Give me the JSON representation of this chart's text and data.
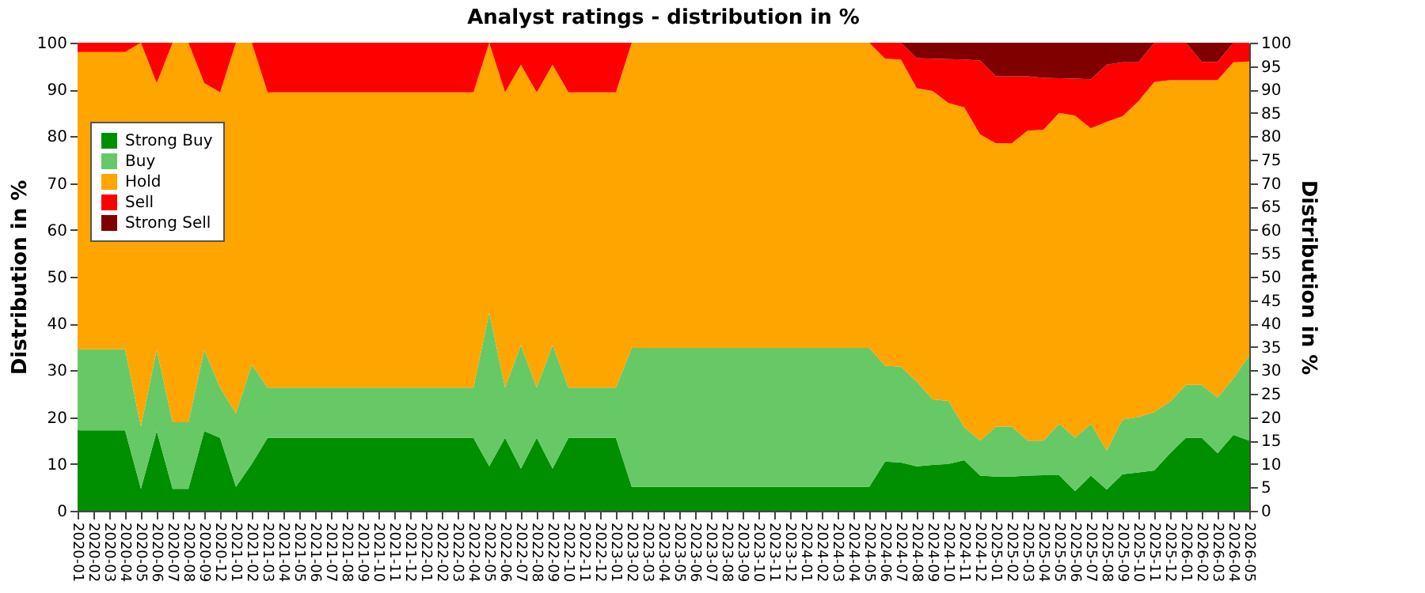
{
  "chart_data": {
    "type": "area",
    "stacked": true,
    "title": "Analyst ratings - distribution in %",
    "ylabel": "Distribution in %",
    "y2label": "Distribution in %",
    "categories": [
      "2020-01",
      "2020-02",
      "2020-03",
      "2020-04",
      "2020-05",
      "2020-06",
      "2020-07",
      "2020-08",
      "2020-09",
      "2020-12",
      "2021-01",
      "2021-02",
      "2021-03",
      "2021-04",
      "2021-05",
      "2021-06",
      "2021-07",
      "2021-08",
      "2021-09",
      "2021-10",
      "2021-11",
      "2021-12",
      "2022-01",
      "2022-02",
      "2022-03",
      "2022-04",
      "2022-05",
      "2022-06",
      "2022-07",
      "2022-08",
      "2022-09",
      "2022-10",
      "2022-11",
      "2022-12",
      "2023-01",
      "2023-02",
      "2023-03",
      "2023-04",
      "2023-05",
      "2023-06",
      "2023-07",
      "2023-08",
      "2023-09",
      "2023-10",
      "2023-11",
      "2023-12",
      "2024-01",
      "2024-02",
      "2024-03",
      "2024-04",
      "2024-05",
      "2024-06",
      "2024-07",
      "2024-08",
      "2024-09",
      "2024-10",
      "2024-11",
      "2024-12",
      "2025-01",
      "2025-02",
      "2025-03",
      "2025-04",
      "2025-05",
      "2025-06",
      "2025-07",
      "2025-08",
      "2025-09",
      "2025-10",
      "2025-11",
      "2025-12",
      "2026-01",
      "2026-02",
      "2026-03",
      "2026-04",
      "2026-05"
    ],
    "series": [
      {
        "name": "Strong Buy",
        "color": "#008f00",
        "values": [
          17.2,
          17.2,
          17.2,
          17.2,
          4.7,
          17,
          4.7,
          4.7,
          17,
          15.6,
          5.1,
          10,
          15.6,
          15.6,
          15.6,
          15.6,
          15.6,
          15.6,
          15.6,
          15.6,
          15.6,
          15.6,
          15.6,
          15.6,
          15.6,
          15.6,
          9.5,
          15.6,
          9,
          15.6,
          9,
          15.6,
          15.6,
          15.6,
          15.6,
          5.1,
          5.1,
          5.1,
          5.1,
          5.1,
          5.1,
          5.1,
          5.1,
          5.1,
          5.1,
          5.1,
          5.1,
          5.1,
          5.1,
          5.1,
          5.1,
          10.5,
          10.3,
          9.5,
          9.8,
          10,
          10.8,
          7.5,
          7.3,
          7.3,
          7.5,
          7.6,
          7.6,
          4.2,
          7.5,
          4.5,
          7.8,
          8.2,
          8.6,
          12.3,
          15.6,
          15.6,
          12.3,
          16.2,
          15
        ]
      },
      {
        "name": "Buy",
        "color": "#66c966",
        "values": [
          17.3,
          17.3,
          17.3,
          17.3,
          13.3,
          17.4,
          14.2,
          14.2,
          17.4,
          10.7,
          15.7,
          21.2,
          10.7,
          10.7,
          10.7,
          10.7,
          10.7,
          10.7,
          10.7,
          10.7,
          10.7,
          10.7,
          10.7,
          10.7,
          10.7,
          10.7,
          32.8,
          10.7,
          26.4,
          10.7,
          26.4,
          10.7,
          10.7,
          10.7,
          10.7,
          29.7,
          29.7,
          29.7,
          29.7,
          29.7,
          29.7,
          29.7,
          29.7,
          29.7,
          29.7,
          29.7,
          29.7,
          29.7,
          29.7,
          29.7,
          29.7,
          20.5,
          20.5,
          18.1,
          14,
          13.5,
          7,
          7.5,
          10.7,
          10.7,
          7.5,
          7.4,
          11,
          11.4,
          11.1,
          8.4,
          11.7,
          11.8,
          12.5,
          11,
          11.3,
          11.3,
          11.9,
          12.1,
          18.2
        ]
      },
      {
        "name": "Hold",
        "color": "#ffa500",
        "values": [
          63.5,
          63.5,
          63.5,
          63.5,
          82,
          57,
          81.1,
          81.1,
          57,
          63.1,
          79.2,
          68.8,
          63.1,
          63.1,
          63.1,
          63.1,
          63.1,
          63.1,
          63.1,
          63.1,
          63.1,
          63.1,
          63.1,
          63.1,
          63.1,
          63.1,
          57.7,
          63.1,
          59.9,
          63.1,
          59.9,
          63.1,
          63.1,
          63.1,
          63.1,
          65.2,
          65.2,
          65.2,
          65.2,
          65.2,
          65.2,
          65.2,
          65.2,
          65.2,
          65.2,
          65.2,
          65.2,
          65.2,
          65.2,
          65.2,
          65.2,
          65.6,
          65.6,
          62.7,
          65.9,
          63.6,
          68.4,
          65.4,
          60.5,
          60.5,
          66.2,
          66.4,
          66.4,
          68.8,
          63.1,
          70.2,
          64.8,
          67.5,
          70.5,
          68.7,
          65.1,
          65.1,
          67.8,
          67.5,
          62.8
        ]
      },
      {
        "name": "Sell",
        "color": "#ff0000",
        "values": [
          2,
          2,
          2,
          2,
          0,
          8.6,
          0,
          0,
          8.6,
          10.6,
          0,
          0,
          10.6,
          10.6,
          10.6,
          10.6,
          10.6,
          10.6,
          10.6,
          10.6,
          10.6,
          10.6,
          10.6,
          10.6,
          10.6,
          10.6,
          0,
          10.6,
          4.7,
          10.6,
          4.7,
          10.6,
          10.6,
          10.6,
          10.6,
          0,
          0,
          0,
          0,
          0,
          0,
          0,
          0,
          0,
          0,
          0,
          0,
          0,
          0,
          0,
          0,
          3.4,
          3.6,
          6.4,
          6.9,
          9.4,
          10.2,
          15.8,
          14.3,
          14.3,
          11.6,
          11.1,
          7.4,
          7.9,
          10.5,
          12.2,
          11.5,
          8.3,
          8.4,
          8,
          8,
          3.9,
          3.9,
          4.2,
          4
        ]
      },
      {
        "name": "Strong Sell",
        "color": "#800000",
        "values": [
          0,
          0,
          0,
          0,
          0,
          0,
          0,
          0,
          0,
          0,
          0,
          0,
          0,
          0,
          0,
          0,
          0,
          0,
          0,
          0,
          0,
          0,
          0,
          0,
          0,
          0,
          0,
          0,
          0,
          0,
          0,
          0,
          0,
          0,
          0,
          0,
          0,
          0,
          0,
          0,
          0,
          0,
          0,
          0,
          0,
          0,
          0,
          0,
          0,
          0,
          0,
          0,
          0,
          3.3,
          3.4,
          3.5,
          3.6,
          3.8,
          7.2,
          7.2,
          7.2,
          7.5,
          7.6,
          7.7,
          7.8,
          4.7,
          4.2,
          4.2,
          0,
          0,
          0,
          4.1,
          4.1,
          0,
          0
        ]
      }
    ],
    "ylim": [
      0,
      100
    ],
    "yticks": [
      0,
      10,
      20,
      30,
      40,
      50,
      60,
      70,
      80,
      90,
      100
    ],
    "y2lim": [
      0,
      100
    ],
    "y2ticks": [
      0,
      5,
      10,
      15,
      20,
      25,
      30,
      35,
      40,
      45,
      50,
      55,
      60,
      65,
      70,
      75,
      80,
      85,
      90,
      95,
      100
    ],
    "grid": "y",
    "legend": "top left"
  }
}
